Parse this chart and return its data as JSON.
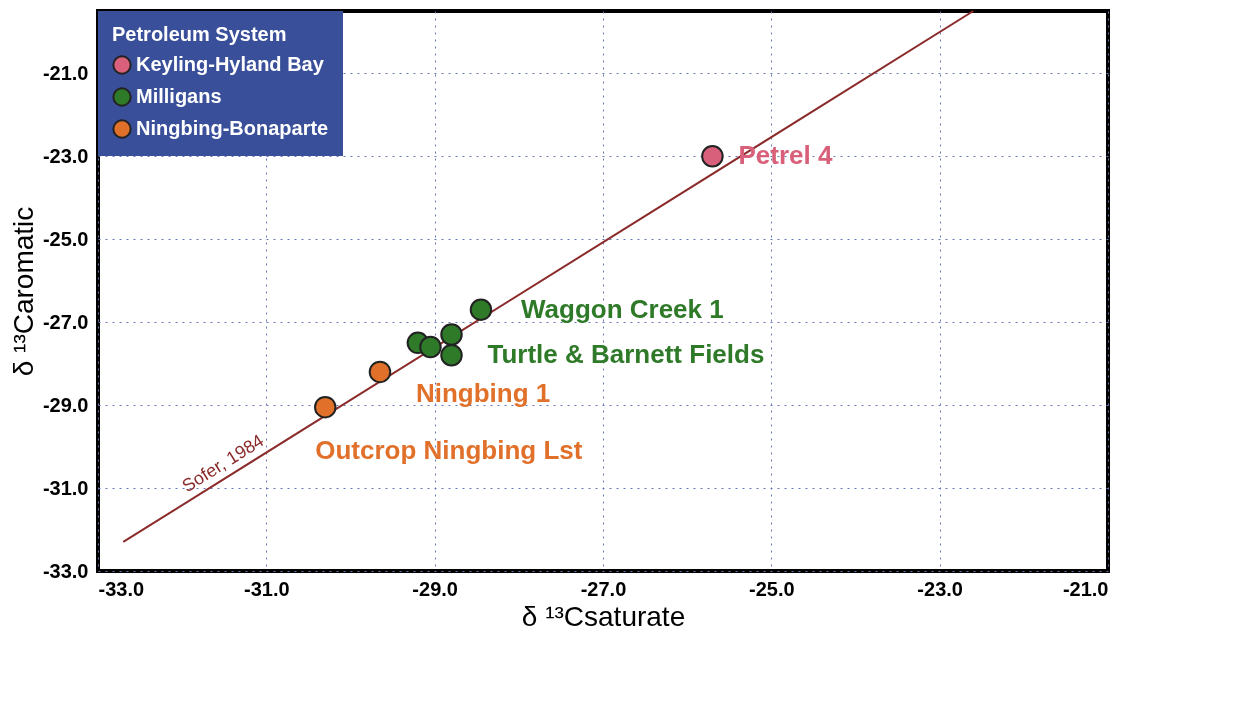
{
  "chart_data": {
    "type": "scatter",
    "xlabel": "δ ¹³Csaturate",
    "ylabel": "δ ¹³Caromatic",
    "legend_title": "Petroleum System",
    "xlim": [
      -33,
      -21
    ],
    "ylim": [
      -33,
      -19.5
    ],
    "xticks": [
      {
        "value": -33,
        "label": "-33.0"
      },
      {
        "value": -31,
        "label": "-31.0"
      },
      {
        "value": -29,
        "label": "-29.0"
      },
      {
        "value": -27,
        "label": "-27.0"
      },
      {
        "value": -25,
        "label": "-25.0"
      },
      {
        "value": -23,
        "label": "-23.0"
      },
      {
        "value": -21,
        "label": "-21.0"
      }
    ],
    "yticks": [
      {
        "value": -33,
        "label": "-33.0"
      },
      {
        "value": -31,
        "label": "-31.0"
      },
      {
        "value": -29,
        "label": "-29.0"
      },
      {
        "value": -27,
        "label": "-27.0"
      },
      {
        "value": -25,
        "label": "-25.0"
      },
      {
        "value": -23,
        "label": "-23.0"
      },
      {
        "value": -21,
        "label": "-21.0"
      }
    ],
    "grid": true,
    "legend": "top left",
    "marker": "circle",
    "series": [
      {
        "name": "Keyling-Hyland Bay",
        "color": "#d9607a",
        "x": [
          -25.7
        ],
        "values": [
          -23.0
        ]
      },
      {
        "name": "Milligans",
        "color": "#2e7a28",
        "x": [
          -28.45,
          -29.2,
          -29.05,
          -28.8,
          -28.8
        ],
        "values": [
          -26.7,
          -27.5,
          -27.6,
          -27.3,
          -27.8
        ]
      },
      {
        "name": "Ningbing-Bonaparte",
        "color": "#e0702a",
        "x": [
          -29.65,
          -30.3
        ],
        "values": [
          -28.2,
          -29.05
        ]
      },
      {
        "name": "Sofer, 1984",
        "type": "line",
        "marker": "none",
        "line_style": "solid",
        "color": "#8b2a2a",
        "x": [
          -32.7,
          -22.6
        ],
        "values": [
          -32.3,
          -19.5
        ]
      }
    ],
    "annotations": [
      {
        "text": "Petrel 4",
        "x": -25.7,
        "y": -23.0
      },
      {
        "text": "Waggon Creek 1",
        "x": -28.45,
        "y": -26.7
      },
      {
        "text": "Turtle & Barnett Fields",
        "x": -28.8,
        "y": -27.6
      },
      {
        "text": "Ningbing 1",
        "x": -29.65,
        "y": -28.2
      },
      {
        "text": "Outcrop Ningbing Lst",
        "x": -30.3,
        "y": -29.05
      }
    ]
  }
}
